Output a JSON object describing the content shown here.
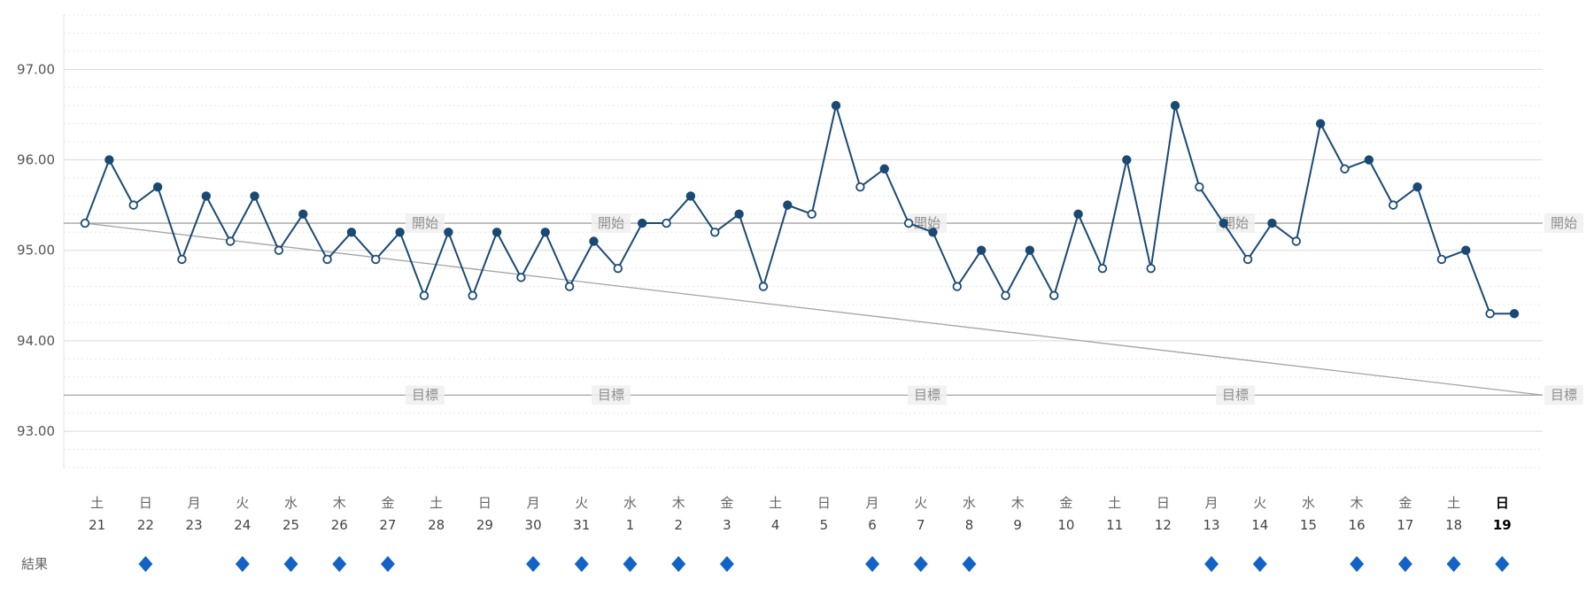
{
  "chart_data": {
    "type": "line",
    "ylim": [
      92.6,
      97.6
    ],
    "minor_grid_step": 0.2,
    "y_ticks": [
      {
        "label": "97.00",
        "value": 97
      },
      {
        "label": "96.00",
        "value": 96
      },
      {
        "label": "95.00",
        "value": 95
      },
      {
        "label": "94.00",
        "value": 94
      },
      {
        "label": "93.00",
        "value": 93
      }
    ],
    "reference_lines": {
      "start": {
        "label": "開始",
        "value": 95.3
      },
      "goal": {
        "label": "目標",
        "value": 93.4
      },
      "trend": {
        "from": 95.3,
        "to": 93.4
      }
    },
    "result_row_label": "結果",
    "days": [
      {
        "weekday": "土",
        "date": "21",
        "am": 95.3,
        "pm": 96.0,
        "result": false
      },
      {
        "weekday": "日",
        "date": "22",
        "am": 95.5,
        "pm": 95.7,
        "result": true
      },
      {
        "weekday": "月",
        "date": "23",
        "am": 94.9,
        "pm": 95.6,
        "result": false
      },
      {
        "weekday": "火",
        "date": "24",
        "am": 95.1,
        "pm": 95.6,
        "result": true
      },
      {
        "weekday": "水",
        "date": "25",
        "am": 95.0,
        "pm": 95.4,
        "result": true
      },
      {
        "weekday": "木",
        "date": "26",
        "am": 94.9,
        "pm": 95.2,
        "result": true
      },
      {
        "weekday": "金",
        "date": "27",
        "am": 94.9,
        "pm": 95.2,
        "result": true
      },
      {
        "weekday": "土",
        "date": "28",
        "am": 94.5,
        "pm": 95.2,
        "result": false
      },
      {
        "weekday": "日",
        "date": "29",
        "am": 94.5,
        "pm": 95.2,
        "result": false
      },
      {
        "weekday": "月",
        "date": "30",
        "am": 94.7,
        "pm": 95.2,
        "result": true
      },
      {
        "weekday": "火",
        "date": "31",
        "am": 94.6,
        "pm": 95.1,
        "result": true
      },
      {
        "weekday": "水",
        "date": "1",
        "am": 94.8,
        "pm": 95.3,
        "result": true
      },
      {
        "weekday": "木",
        "date": "2",
        "am": 95.3,
        "pm": 95.6,
        "result": true
      },
      {
        "weekday": "金",
        "date": "3",
        "am": 95.2,
        "pm": 95.4,
        "result": true
      },
      {
        "weekday": "土",
        "date": "4",
        "am": 94.6,
        "pm": 95.5,
        "result": false
      },
      {
        "weekday": "日",
        "date": "5",
        "am": 95.4,
        "pm": 96.6,
        "result": false
      },
      {
        "weekday": "月",
        "date": "6",
        "am": 95.7,
        "pm": 95.9,
        "result": true
      },
      {
        "weekday": "火",
        "date": "7",
        "am": 95.3,
        "pm": 95.2,
        "result": true
      },
      {
        "weekday": "水",
        "date": "8",
        "am": 94.6,
        "pm": 95.0,
        "result": true
      },
      {
        "weekday": "木",
        "date": "9",
        "am": 94.5,
        "pm": 95.0,
        "result": false
      },
      {
        "weekday": "金",
        "date": "10",
        "am": 94.5,
        "pm": 95.4,
        "result": false
      },
      {
        "weekday": "土",
        "date": "11",
        "am": 94.8,
        "pm": 96.0,
        "result": false
      },
      {
        "weekday": "日",
        "date": "12",
        "am": 94.8,
        "pm": 96.6,
        "result": false
      },
      {
        "weekday": "月",
        "date": "13",
        "am": 95.7,
        "pm": 95.3,
        "result": true
      },
      {
        "weekday": "火",
        "date": "14",
        "am": 94.9,
        "pm": 95.3,
        "result": true
      },
      {
        "weekday": "水",
        "date": "15",
        "am": 95.1,
        "pm": 96.4,
        "result": false
      },
      {
        "weekday": "木",
        "date": "16",
        "am": 95.9,
        "pm": 96.0,
        "result": true
      },
      {
        "weekday": "金",
        "date": "17",
        "am": 95.5,
        "pm": 95.7,
        "result": true
      },
      {
        "weekday": "土",
        "date": "18",
        "am": 94.9,
        "pm": 95.0,
        "result": true
      },
      {
        "weekday": "日",
        "date": "19",
        "am": 94.3,
        "pm": 94.3,
        "result": true,
        "today": true
      }
    ],
    "colors": {
      "line": "#1a4a73",
      "point_open_fill": "#ffffff",
      "result_diamond": "#1263c5",
      "reference_line": "#a3a3a3",
      "reference_label_text": "#8f8f8f",
      "reference_label_bg": "#f0f0f0",
      "grid_minor": "#e7e7e7",
      "grid_major": "#d9d9d9",
      "axis_text": "#555555",
      "weekday_text": "#666666",
      "date_text": "#444444",
      "today_text": "#000000"
    }
  }
}
